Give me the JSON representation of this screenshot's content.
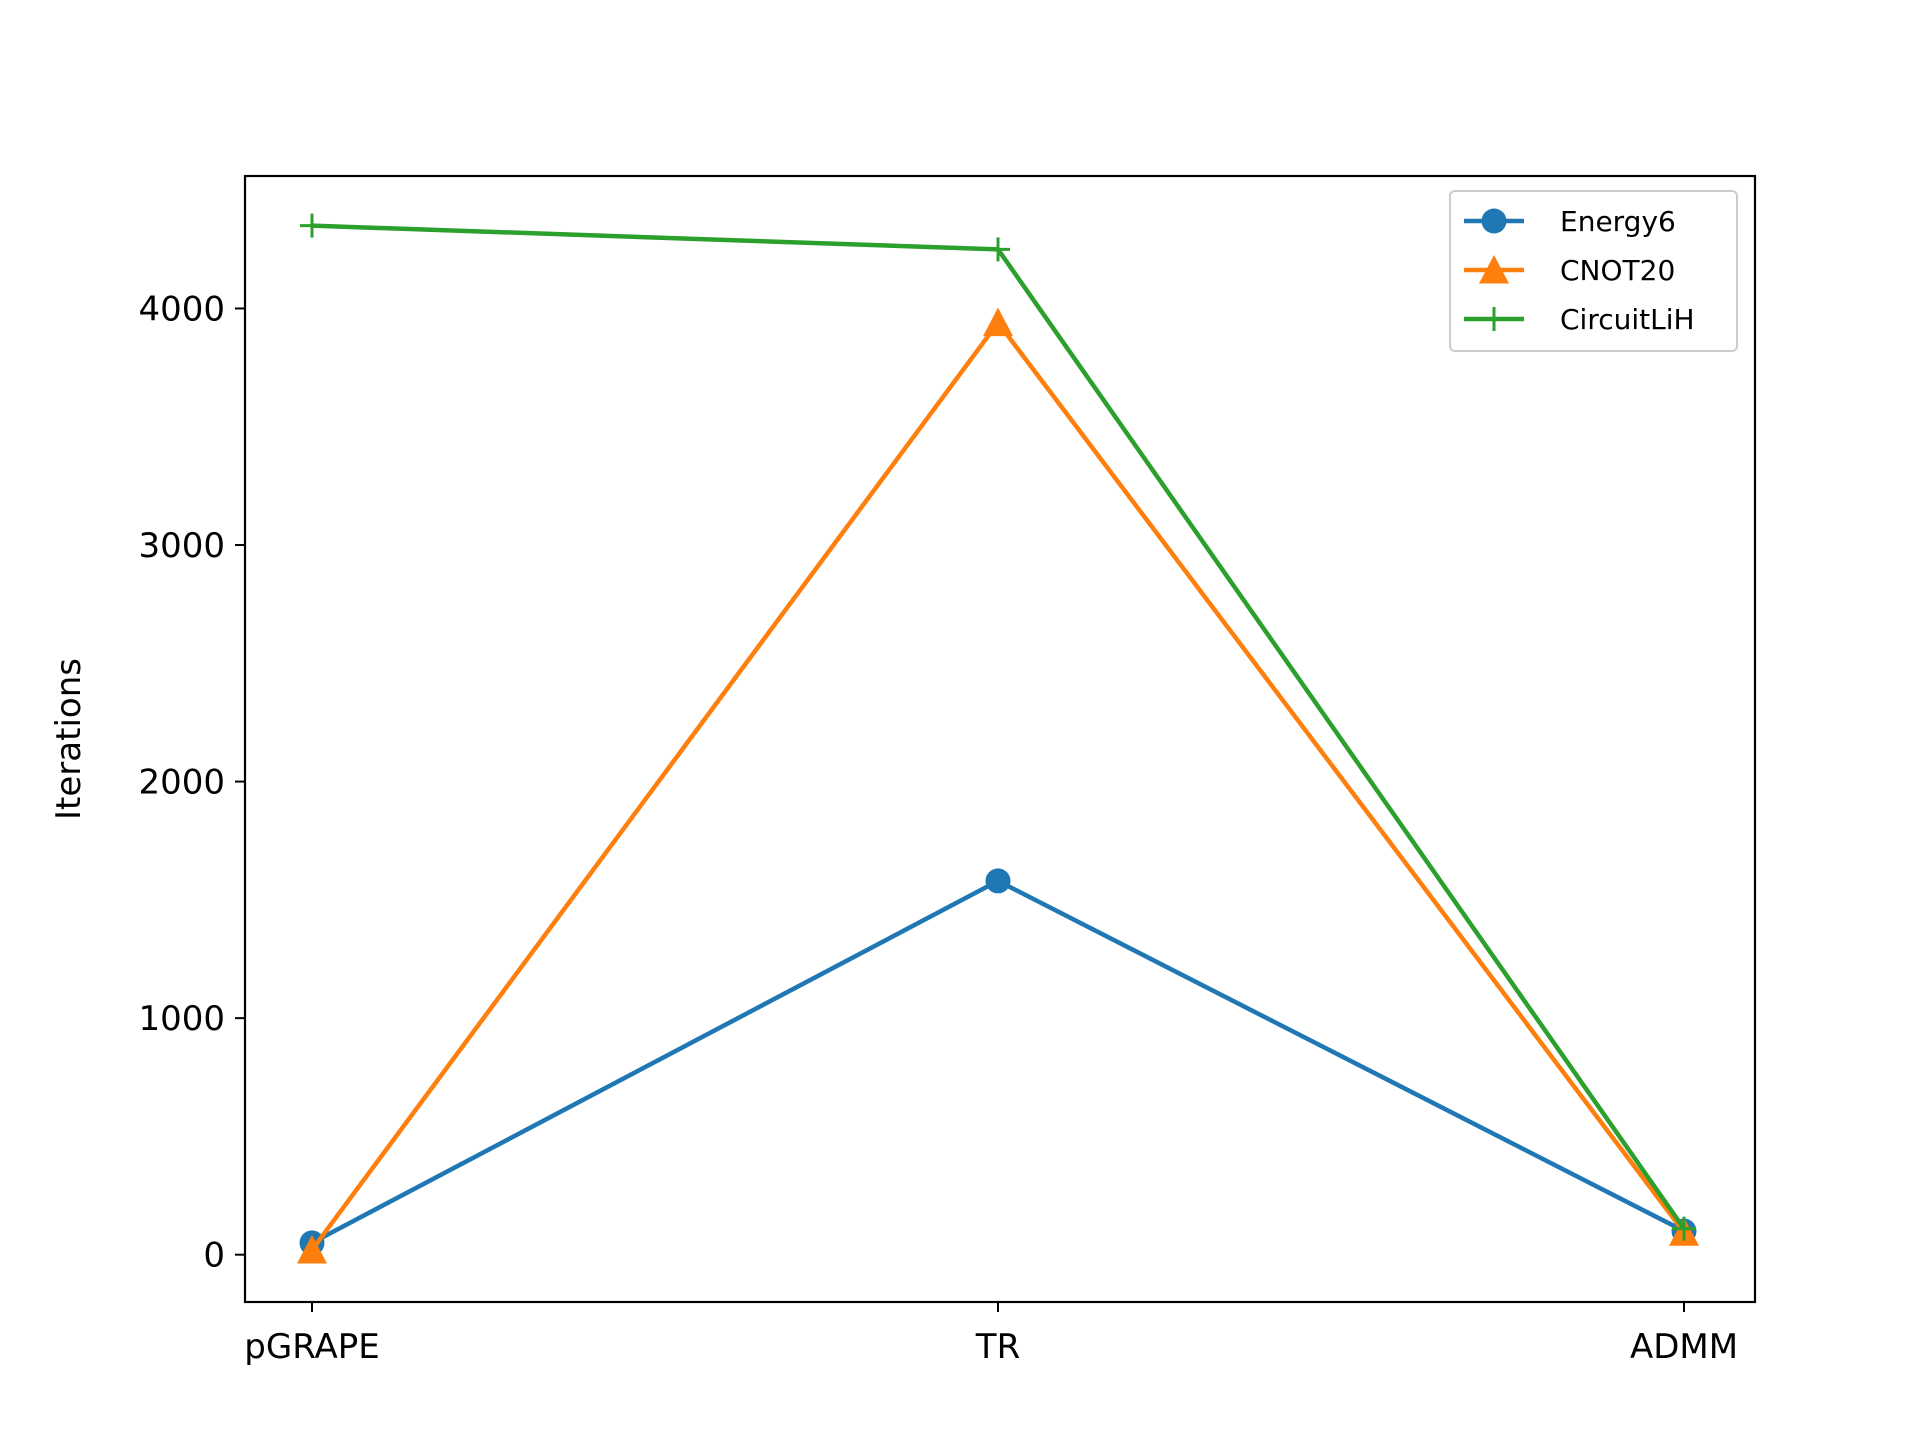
{
  "chart_data": {
    "type": "line",
    "categories": [
      "pGRAPE",
      "TR",
      "ADMM"
    ],
    "ylabel": "Iterations",
    "xlabel": "",
    "ylim": [
      -200,
      4560
    ],
    "yticks": [
      0,
      1000,
      2000,
      3000,
      4000
    ],
    "grid": false,
    "legend_position": "top-right",
    "series": [
      {
        "name": "Energy6",
        "values": [
          50,
          1580,
          100
        ],
        "color": "#1f77b4",
        "marker": "circle"
      },
      {
        "name": "CNOT20",
        "values": [
          20,
          3940,
          95
        ],
        "color": "#ff7f0e",
        "marker": "triangle"
      },
      {
        "name": "CircuitLiH",
        "values": [
          4350,
          4250,
          110
        ],
        "color": "#2ca02c",
        "marker": "plus"
      }
    ]
  }
}
